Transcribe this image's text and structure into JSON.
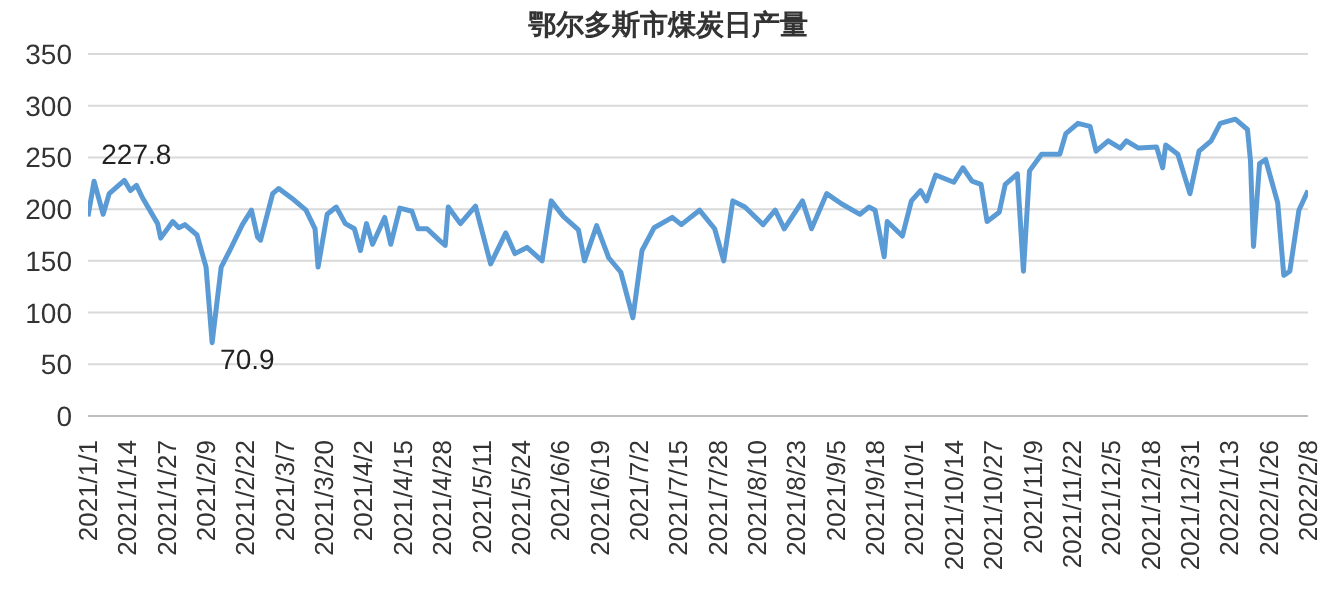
{
  "chart_data": {
    "type": "line",
    "title": "鄂尔多斯市煤炭日产量",
    "x": [
      "2021-01-01",
      "2021-01-03",
      "2021-01-06",
      "2021-01-08",
      "2021-01-13",
      "2021-01-15",
      "2021-01-17",
      "2021-01-19",
      "2021-01-24",
      "2021-01-25",
      "2021-01-29",
      "2021-01-31",
      "2021-02-02",
      "2021-02-06",
      "2021-02-09",
      "2021-02-11",
      "2021-02-14",
      "2021-02-17",
      "2021-02-21",
      "2021-02-24",
      "2021-02-26",
      "2021-02-27",
      "2021-03-03",
      "2021-03-05",
      "2021-03-10",
      "2021-03-14",
      "2021-03-17",
      "2021-03-18",
      "2021-03-21",
      "2021-03-24",
      "2021-03-27",
      "2021-03-30",
      "2021-04-01",
      "2021-04-03",
      "2021-04-05",
      "2021-04-09",
      "2021-04-11",
      "2021-04-14",
      "2021-04-18",
      "2021-04-20",
      "2021-04-23",
      "2021-04-27",
      "2021-04-29",
      "2021-04-30",
      "2021-05-04",
      "2021-05-09",
      "2021-05-14",
      "2021-05-19",
      "2021-05-22",
      "2021-05-26",
      "2021-05-31",
      "2021-06-03",
      "2021-06-07",
      "2021-06-12",
      "2021-06-14",
      "2021-06-18",
      "2021-06-22",
      "2021-06-26",
      "2021-06-30",
      "2021-07-03",
      "2021-07-07",
      "2021-07-13",
      "2021-07-16",
      "2021-07-22",
      "2021-07-27",
      "2021-07-30",
      "2021-08-02",
      "2021-08-06",
      "2021-08-12",
      "2021-08-16",
      "2021-08-19",
      "2021-08-25",
      "2021-08-28",
      "2021-09-02",
      "2021-09-07",
      "2021-09-13",
      "2021-09-16",
      "2021-09-18",
      "2021-09-21",
      "2021-09-22",
      "2021-09-27",
      "2021-09-30",
      "2021-10-03",
      "2021-10-05",
      "2021-10-08",
      "2021-10-14",
      "2021-10-17",
      "2021-10-20",
      "2021-10-23",
      "2021-10-25",
      "2021-10-29",
      "2021-10-31",
      "2021-11-04",
      "2021-11-06",
      "2021-11-08",
      "2021-11-12",
      "2021-11-18",
      "2021-11-20",
      "2021-11-24",
      "2021-11-28",
      "2021-11-30",
      "2021-12-04",
      "2021-12-08",
      "2021-12-10",
      "2021-12-14",
      "2021-12-20",
      "2021-12-22",
      "2021-12-23",
      "2021-12-27",
      "2021-12-31",
      "2022-01-03",
      "2022-01-07",
      "2022-01-10",
      "2022-01-15",
      "2022-01-19",
      "2022-01-20",
      "2022-01-21",
      "2022-01-23",
      "2022-01-25",
      "2022-01-29",
      "2022-01-31",
      "2022-02-02",
      "2022-02-05",
      "2022-02-08"
    ],
    "series": [
      {
        "color": "#5b9bd5",
        "values": [
          193,
          227,
          195,
          215,
          227.8,
          218,
          223,
          211,
          186,
          172,
          188,
          182,
          185,
          175,
          144,
          70.9,
          144,
          161,
          185,
          199,
          173,
          170,
          215,
          220,
          209,
          199,
          181,
          144,
          195,
          202,
          186,
          181,
          160,
          186,
          166,
          192,
          166,
          201,
          198,
          181,
          181,
          170,
          165,
          202,
          186,
          203,
          147,
          177,
          157,
          163,
          150,
          208,
          193,
          180,
          150,
          184,
          153,
          139,
          95,
          160,
          182,
          192,
          185,
          199,
          181,
          150,
          208,
          202,
          185,
          199,
          181,
          208,
          181,
          215,
          205,
          195,
          202,
          199,
          154,
          188,
          174,
          208,
          218,
          208,
          233,
          226,
          240,
          227,
          224,
          188,
          197,
          224,
          234,
          140,
          237,
          253,
          253,
          273,
          283,
          280,
          256,
          266,
          259,
          266,
          259,
          260,
          240,
          262,
          253,
          215,
          256,
          266,
          283,
          287,
          277,
          247,
          164,
          244,
          248,
          206,
          136,
          140,
          199,
          218
        ]
      }
    ],
    "xlim": [
      "2021-01-01",
      "2022-02-08"
    ],
    "xticks": [
      {
        "value": "2021-01-01",
        "label": "2021/1/1"
      },
      {
        "value": "2021-01-14",
        "label": "2021/1/14"
      },
      {
        "value": "2021-01-27",
        "label": "2021/1/27"
      },
      {
        "value": "2021-02-09",
        "label": "2021/2/9"
      },
      {
        "value": "2021-02-22",
        "label": "2021/2/22"
      },
      {
        "value": "2021-03-07",
        "label": "2021/3/7"
      },
      {
        "value": "2021-03-20",
        "label": "2021/3/20"
      },
      {
        "value": "2021-04-02",
        "label": "2021/4/2"
      },
      {
        "value": "2021-04-15",
        "label": "2021/4/15"
      },
      {
        "value": "2021-04-28",
        "label": "2021/4/28"
      },
      {
        "value": "2021-05-11",
        "label": "2021/5/11"
      },
      {
        "value": "2021-05-24",
        "label": "2021/5/24"
      },
      {
        "value": "2021-06-06",
        "label": "2021/6/6"
      },
      {
        "value": "2021-06-19",
        "label": "2021/6/19"
      },
      {
        "value": "2021-07-02",
        "label": "2021/7/2"
      },
      {
        "value": "2021-07-15",
        "label": "2021/7/15"
      },
      {
        "value": "2021-07-28",
        "label": "2021/7/28"
      },
      {
        "value": "2021-08-10",
        "label": "2021/8/10"
      },
      {
        "value": "2021-08-23",
        "label": "2021/8/23"
      },
      {
        "value": "2021-09-05",
        "label": "2021/9/5"
      },
      {
        "value": "2021-09-18",
        "label": "2021/9/18"
      },
      {
        "value": "2021-10-01",
        "label": "2021/10/1"
      },
      {
        "value": "2021-10-14",
        "label": "2021/10/14"
      },
      {
        "value": "2021-10-27",
        "label": "2021/10/27"
      },
      {
        "value": "2021-11-09",
        "label": "2021/11/9"
      },
      {
        "value": "2021-11-22",
        "label": "2021/11/22"
      },
      {
        "value": "2021-12-05",
        "label": "2021/12/5"
      },
      {
        "value": "2021-12-18",
        "label": "2021/12/18"
      },
      {
        "value": "2021-12-31",
        "label": "2021/12/31"
      },
      {
        "value": "2022-01-13",
        "label": "2022/1/13"
      },
      {
        "value": "2022-01-26",
        "label": "2022/1/26"
      },
      {
        "value": "2022-02-08",
        "label": "2022/2/8"
      }
    ],
    "ylim": [
      0,
      350
    ],
    "yticks": [
      0,
      50,
      100,
      150,
      200,
      250,
      300,
      350
    ],
    "grid": "y",
    "marker": "none",
    "line_style": "solid",
    "annotations": [
      {
        "text": "227.8",
        "x": "2021-01-13",
        "y": 227.8
      },
      {
        "text": "70.9",
        "x": "2021-02-11",
        "y": 70.9
      }
    ]
  }
}
